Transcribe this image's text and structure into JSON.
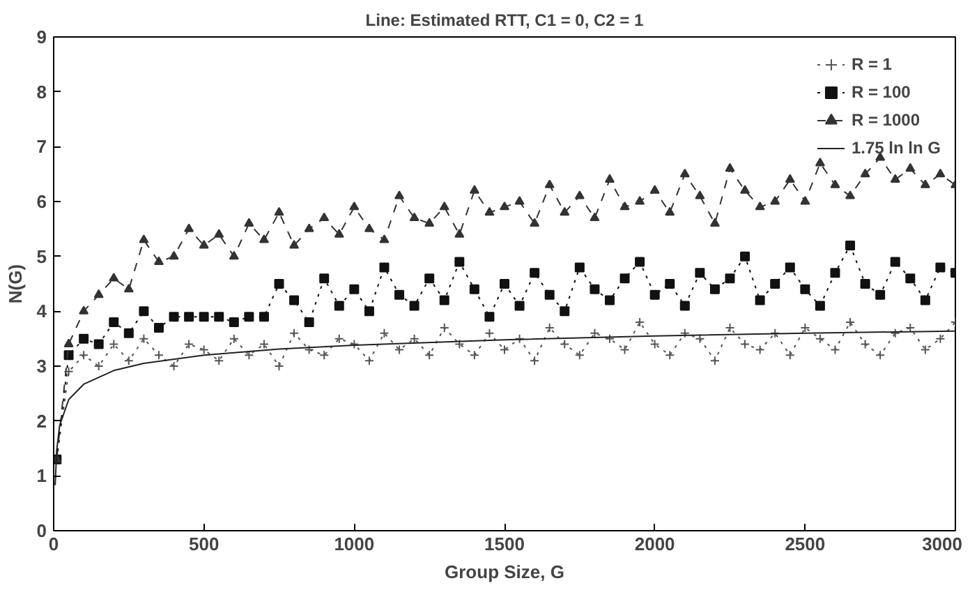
{
  "chart_data": {
    "type": "line",
    "title": "Line: Estimated RTT, C1 = 0, C2 = 1",
    "xlabel": "Group Size, G",
    "ylabel": "N(G)",
    "xlim": [
      0,
      3000
    ],
    "ylim": [
      0,
      9
    ],
    "xticks": [
      0,
      500,
      1000,
      1500,
      2000,
      2500,
      3000
    ],
    "yticks": [
      0,
      1,
      2,
      3,
      4,
      5,
      6,
      7,
      8,
      9
    ],
    "grid": false,
    "legend": "top right",
    "x": [
      10,
      50,
      100,
      150,
      200,
      250,
      300,
      350,
      400,
      450,
      500,
      550,
      600,
      650,
      700,
      750,
      800,
      850,
      900,
      950,
      1000,
      1050,
      1100,
      1150,
      1200,
      1250,
      1300,
      1350,
      1400,
      1450,
      1500,
      1550,
      1600,
      1650,
      1700,
      1750,
      1800,
      1850,
      1900,
      1950,
      2000,
      2050,
      2100,
      2150,
      2200,
      2250,
      2300,
      2350,
      2400,
      2450,
      2500,
      2550,
      2600,
      2650,
      2700,
      2750,
      2800,
      2850,
      2900,
      2950,
      3000
    ],
    "series": [
      {
        "name": "R = 1",
        "color": "#555555",
        "marker": "cross",
        "line_style": "dotted",
        "values": [
          1.3,
          2.9,
          3.2,
          3.0,
          3.4,
          3.1,
          3.5,
          3.2,
          3.0,
          3.4,
          3.3,
          3.1,
          3.5,
          3.2,
          3.4,
          3.0,
          3.6,
          3.3,
          3.2,
          3.5,
          3.4,
          3.1,
          3.6,
          3.3,
          3.5,
          3.2,
          3.7,
          3.4,
          3.2,
          3.6,
          3.3,
          3.5,
          3.1,
          3.7,
          3.4,
          3.2,
          3.6,
          3.5,
          3.3,
          3.8,
          3.4,
          3.2,
          3.6,
          3.5,
          3.1,
          3.7,
          3.4,
          3.3,
          3.6,
          3.2,
          3.7,
          3.5,
          3.3,
          3.8,
          3.4,
          3.2,
          3.6,
          3.7,
          3.3,
          3.5,
          3.8
        ]
      },
      {
        "name": "R = 100",
        "color": "#111111",
        "marker": "square",
        "line_style": "dotted",
        "values": [
          1.3,
          3.2,
          3.5,
          3.4,
          3.8,
          3.6,
          4.0,
          3.7,
          3.9,
          3.9,
          3.9,
          3.9,
          3.8,
          3.9,
          3.9,
          4.5,
          4.2,
          3.8,
          4.6,
          4.1,
          4.4,
          4.0,
          4.8,
          4.3,
          4.1,
          4.6,
          4.2,
          4.9,
          4.4,
          3.9,
          4.5,
          4.1,
          4.7,
          4.3,
          4.0,
          4.8,
          4.4,
          4.2,
          4.6,
          4.9,
          4.3,
          4.5,
          4.1,
          4.7,
          4.4,
          4.6,
          5.0,
          4.2,
          4.5,
          4.8,
          4.4,
          4.1,
          4.7,
          5.2,
          4.5,
          4.3,
          4.9,
          4.6,
          4.2,
          4.8,
          4.7
        ]
      },
      {
        "name": "R = 1000",
        "color": "#333333",
        "marker": "triangle",
        "line_style": "dashed",
        "values": [
          1.3,
          3.4,
          4.0,
          4.3,
          4.6,
          4.4,
          5.3,
          4.9,
          5.0,
          5.5,
          5.2,
          5.4,
          5.0,
          5.6,
          5.3,
          5.8,
          5.2,
          5.5,
          5.7,
          5.4,
          5.9,
          5.5,
          5.3,
          6.1,
          5.7,
          5.6,
          5.9,
          5.4,
          6.2,
          5.8,
          5.9,
          6.0,
          5.6,
          6.3,
          5.8,
          6.1,
          5.7,
          6.4,
          5.9,
          6.0,
          6.2,
          5.8,
          6.5,
          6.1,
          5.6,
          6.6,
          6.2,
          5.9,
          6.0,
          6.4,
          6.0,
          6.7,
          6.3,
          6.1,
          6.5,
          6.8,
          6.4,
          6.6,
          6.3,
          6.5,
          6.3
        ]
      },
      {
        "name": "1.75 ln ln G",
        "color": "#222222",
        "marker": "none",
        "line_style": "solid",
        "x": [
          5,
          10,
          20,
          50,
          100,
          200,
          300,
          500,
          750,
          1000,
          1500,
          2000,
          2500,
          3000
        ],
        "values": [
          0.83,
          1.46,
          1.92,
          2.39,
          2.67,
          2.92,
          3.05,
          3.2,
          3.31,
          3.38,
          3.48,
          3.55,
          3.6,
          3.64
        ]
      }
    ]
  }
}
